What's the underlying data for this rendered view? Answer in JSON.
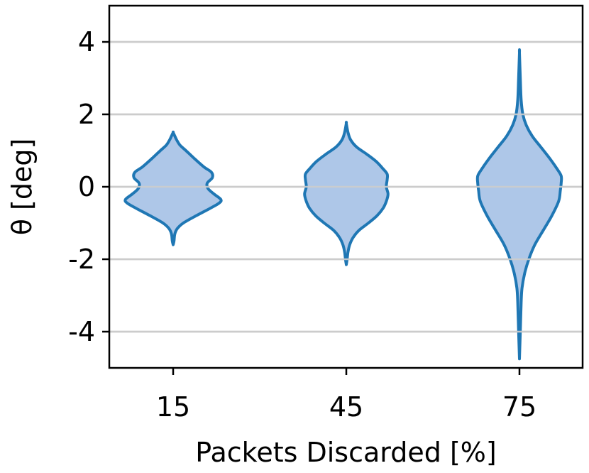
{
  "chart_data": {
    "type": "violin",
    "title": "",
    "xlabel": "Packets Discarded [%]",
    "ylabel": "θ [deg]",
    "categories": [
      "15",
      "45",
      "75"
    ],
    "ylim": [
      -5.0,
      5.0
    ],
    "yticks": [
      4,
      2,
      0,
      -2,
      -4
    ],
    "ytick_labels": [
      "4",
      "2",
      "0",
      "-2",
      "-4"
    ],
    "grid": "horizontal",
    "colors": {
      "fill": "#aec7e8",
      "stroke": "#1f77b4",
      "grid": "#cccccc",
      "axes": "#000000"
    },
    "violins": [
      {
        "category": "15",
        "min": -1.6,
        "max": 1.5,
        "profile": [
          [
            -1.6,
            0.0
          ],
          [
            -1.5,
            0.01
          ],
          [
            -1.3,
            0.02
          ],
          [
            -1.15,
            0.05
          ],
          [
            -1.0,
            0.12
          ],
          [
            -0.8,
            0.27
          ],
          [
            -0.6,
            0.43
          ],
          [
            -0.45,
            0.54
          ],
          [
            -0.35,
            0.56
          ],
          [
            -0.2,
            0.48
          ],
          [
            -0.05,
            0.41
          ],
          [
            0.1,
            0.4
          ],
          [
            0.25,
            0.46
          ],
          [
            0.4,
            0.45
          ],
          [
            0.55,
            0.36
          ],
          [
            0.8,
            0.24
          ],
          [
            1.0,
            0.15
          ],
          [
            1.15,
            0.08
          ],
          [
            1.3,
            0.04
          ],
          [
            1.4,
            0.02
          ],
          [
            1.5,
            0.0
          ]
        ]
      },
      {
        "category": "45",
        "min": -2.15,
        "max": 1.75,
        "profile": [
          [
            -2.15,
            0.0
          ],
          [
            -2.0,
            0.01
          ],
          [
            -1.8,
            0.02
          ],
          [
            -1.6,
            0.04
          ],
          [
            -1.4,
            0.08
          ],
          [
            -1.2,
            0.15
          ],
          [
            -1.0,
            0.26
          ],
          [
            -0.8,
            0.36
          ],
          [
            -0.6,
            0.43
          ],
          [
            -0.4,
            0.47
          ],
          [
            -0.2,
            0.49
          ],
          [
            0.0,
            0.47
          ],
          [
            0.2,
            0.48
          ],
          [
            0.35,
            0.48
          ],
          [
            0.5,
            0.43
          ],
          [
            0.7,
            0.35
          ],
          [
            0.9,
            0.24
          ],
          [
            1.1,
            0.12
          ],
          [
            1.3,
            0.05
          ],
          [
            1.5,
            0.02
          ],
          [
            1.75,
            0.0
          ]
        ]
      },
      {
        "category": "75",
        "min": -4.75,
        "max": 3.7,
        "profile": [
          [
            -4.75,
            0.0
          ],
          [
            -4.0,
            0.01
          ],
          [
            -3.2,
            0.02
          ],
          [
            -2.8,
            0.03
          ],
          [
            -2.4,
            0.06
          ],
          [
            -2.0,
            0.11
          ],
          [
            -1.6,
            0.18
          ],
          [
            -1.2,
            0.28
          ],
          [
            -0.8,
            0.38
          ],
          [
            -0.4,
            0.46
          ],
          [
            -0.1,
            0.48
          ],
          [
            0.1,
            0.49
          ],
          [
            0.3,
            0.49
          ],
          [
            0.5,
            0.44
          ],
          [
            0.8,
            0.35
          ],
          [
            1.1,
            0.25
          ],
          [
            1.4,
            0.15
          ],
          [
            1.7,
            0.08
          ],
          [
            2.0,
            0.04
          ],
          [
            2.4,
            0.02
          ],
          [
            3.0,
            0.01
          ],
          [
            3.7,
            0.0
          ]
        ]
      }
    ]
  }
}
